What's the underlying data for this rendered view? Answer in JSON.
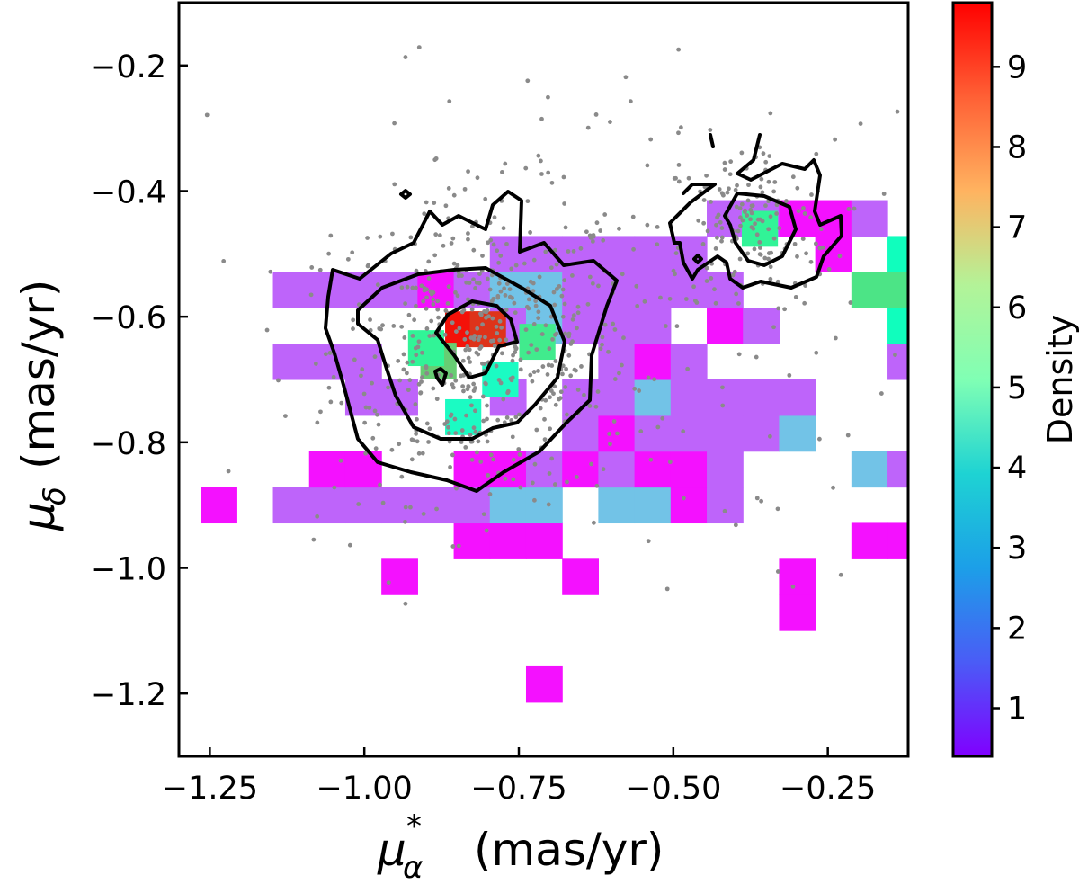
{
  "chart_data": {
    "type": "heatmap",
    "x_axis": {
      "range": [
        -1.3,
        -0.12
      ],
      "ticks": [
        -1.25,
        -1.0,
        -0.75,
        -0.5,
        -0.25
      ],
      "tick_labels": [
        "−1.25",
        "−1.00",
        "−0.75",
        "−0.50",
        "−0.25"
      ]
    },
    "y_axis": {
      "range": [
        -1.3,
        -0.1
      ],
      "ticks": [
        -0.2,
        -0.4,
        -0.6,
        -0.8,
        -1.0,
        -1.2
      ],
      "tick_labels": [
        "−0.2",
        "−0.4",
        "−0.6",
        "−0.8",
        "−1.0",
        "−1.2"
      ]
    },
    "colorbar": {
      "label": "Density",
      "colormap": "rainbow",
      "range": [
        0.4,
        9.8
      ],
      "ticks": [
        1,
        2,
        3,
        4,
        5,
        6,
        7,
        8,
        9
      ],
      "tick_labels": [
        "1",
        "2",
        "3",
        "4",
        "5",
        "6",
        "7",
        "8",
        "9"
      ]
    },
    "bins": {
      "x_edges_start": -1.2649,
      "x_bin_width": 0.0585,
      "y_edges_start": -1.2138,
      "y_bin_width": 0.0571,
      "rows": [
        ".........0..............",
        "......................0.",
        "................0.....00",
        ".....0....0.....0.....01",
        ".......000........0011.1",
        "0.11111122.2201.....2222",
        "...00..00101001...21111.",
        "..........1011112......1",
        "....11..1.1121111....1..",
        "..111......101.....11211",
        "........12111.01...33.1.",
        "..1111012211111...44....",
        "........111111...0.32...",
        "..............11001...1."
      ]
    },
    "grid": false,
    "legend": "colorbar-right"
  }
}
